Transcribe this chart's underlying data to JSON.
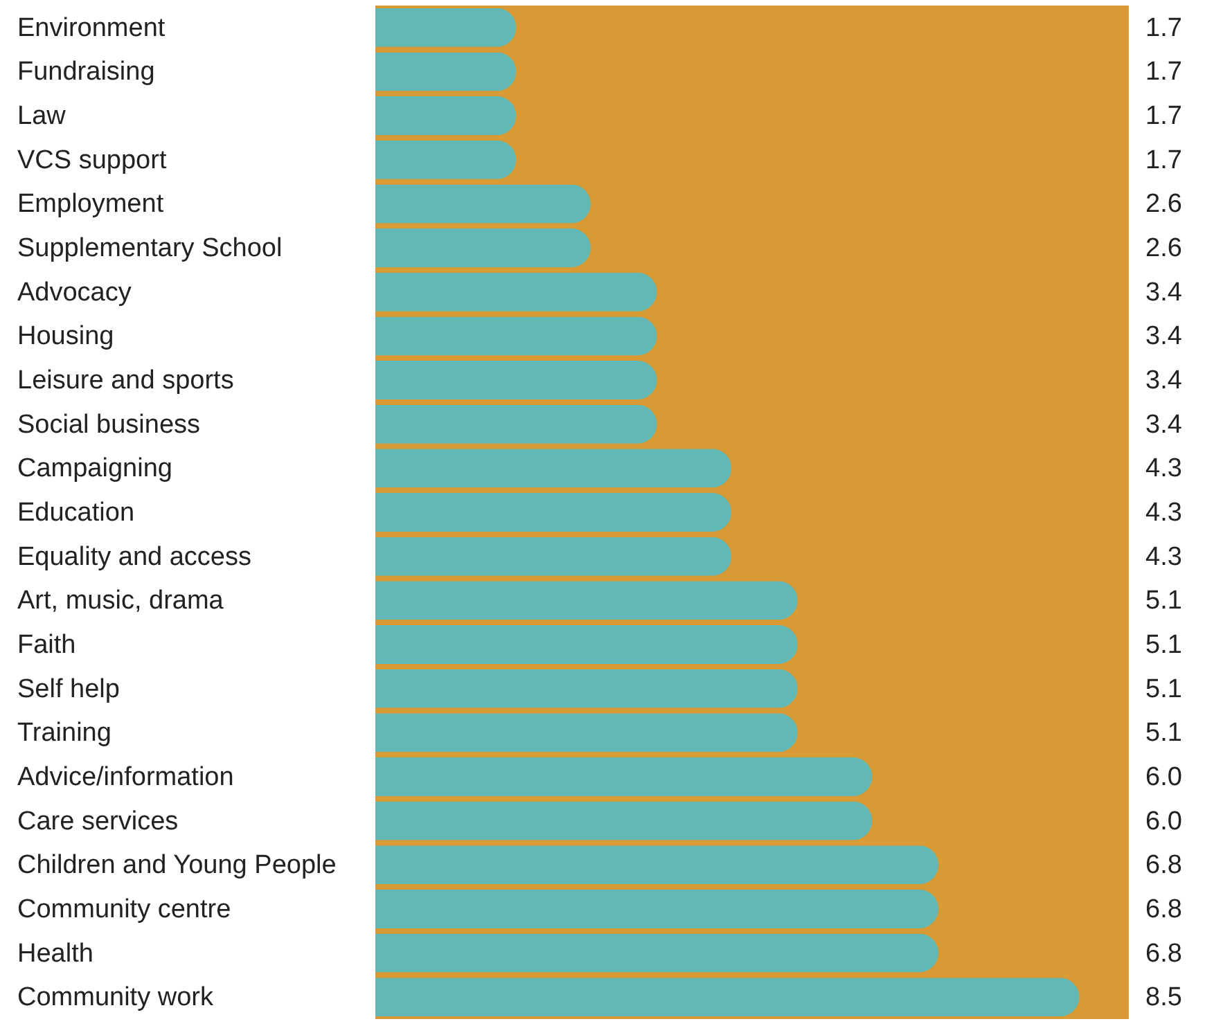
{
  "chart_data": {
    "type": "bar",
    "orientation": "horizontal",
    "categories": [
      "Environment",
      "Fundraising",
      "Law",
      "VCS support",
      "Employment",
      "Supplementary School",
      "Advocacy",
      "Housing",
      "Leisure and sports",
      "Social business",
      "Campaigning",
      "Education",
      "Equality and access",
      "Art, music, drama",
      "Faith",
      "Self help",
      "Training",
      "Advice/information",
      "Care services",
      "Children  and Young People",
      "Community centre",
      "Health",
      "Community work"
    ],
    "values": [
      1.7,
      1.7,
      1.7,
      1.7,
      2.6,
      2.6,
      3.4,
      3.4,
      3.4,
      3.4,
      4.3,
      4.3,
      4.3,
      5.1,
      5.1,
      5.1,
      5.1,
      6.0,
      6.0,
      6.8,
      6.8,
      6.8,
      8.5
    ],
    "value_labels": [
      "1.7",
      "1.7",
      "1.7",
      "1.7",
      "2.6",
      "2.6",
      "3.4",
      "3.4",
      "3.4",
      "3.4",
      "4.3",
      "4.3",
      "4.3",
      "5.1",
      "5.1",
      "5.1",
      "5.1",
      "6.0",
      "6.0",
      "6.8",
      "6.8",
      "6.8",
      "8.5"
    ],
    "color": "#62b8b5",
    "xlim": [
      0,
      9.1
    ],
    "bands": [
      {
        "axis": "x",
        "from": 0,
        "to": 9.1,
        "color": "#d89a35"
      }
    ],
    "tick_labels": "y",
    "grid": false
  }
}
